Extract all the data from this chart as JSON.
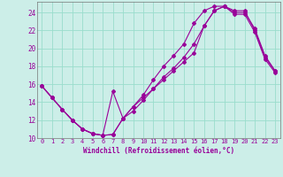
{
  "xlabel": "Windchill (Refroidissement éolien,°C)",
  "bg_color": "#cceee8",
  "grid_color": "#99ddcc",
  "line_color": "#990099",
  "xlim": [
    -0.5,
    23.5
  ],
  "ylim": [
    10,
    25.2
  ],
  "xticks": [
    0,
    1,
    2,
    3,
    4,
    5,
    6,
    7,
    8,
    9,
    10,
    11,
    12,
    13,
    14,
    15,
    16,
    17,
    18,
    19,
    20,
    21,
    22,
    23
  ],
  "yticks": [
    10,
    12,
    14,
    16,
    18,
    20,
    22,
    24
  ],
  "line1_x": [
    0,
    1,
    2,
    3,
    4,
    5,
    6,
    7,
    8,
    9,
    10,
    11,
    12,
    13,
    14,
    15,
    16,
    17,
    18,
    19,
    20,
    21,
    22,
    23
  ],
  "line1_y": [
    15.8,
    14.5,
    13.2,
    12.0,
    11.0,
    10.5,
    10.3,
    10.4,
    12.2,
    13.5,
    14.5,
    15.5,
    16.5,
    17.5,
    18.5,
    19.5,
    22.5,
    24.2,
    24.7,
    24.0,
    24.0,
    22.2,
    19.2,
    17.5
  ],
  "line2_x": [
    0,
    1,
    2,
    3,
    4,
    5,
    6,
    7,
    8,
    9,
    10,
    11,
    12,
    13,
    14,
    15,
    16,
    17,
    18,
    19,
    20,
    21,
    22,
    23
  ],
  "line2_y": [
    15.8,
    14.5,
    13.2,
    12.0,
    11.0,
    10.5,
    10.3,
    15.2,
    12.2,
    13.0,
    14.2,
    15.5,
    16.8,
    17.8,
    19.0,
    20.5,
    22.5,
    24.2,
    24.7,
    23.8,
    23.8,
    21.8,
    18.8,
    17.3
  ],
  "line3_x": [
    0,
    1,
    2,
    3,
    4,
    5,
    6,
    7,
    8,
    9,
    10,
    11,
    12,
    13,
    14,
    15,
    16,
    17,
    18,
    19,
    20,
    21,
    22,
    23
  ],
  "line3_y": [
    15.8,
    14.5,
    13.2,
    12.0,
    11.0,
    10.5,
    10.3,
    10.4,
    12.2,
    13.5,
    14.8,
    16.5,
    18.0,
    19.2,
    20.5,
    22.8,
    24.2,
    24.7,
    24.7,
    24.2,
    24.2,
    22.0,
    19.0,
    17.5
  ],
  "xlabel_fontsize": 5.5,
  "tick_fontsize": 5.0,
  "marker_size": 2.0,
  "line_width": 0.8
}
